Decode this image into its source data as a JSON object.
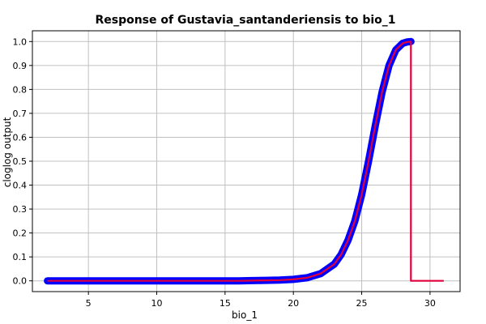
{
  "chart_data": {
    "type": "line",
    "title": "Response of Gustavia_santanderiensis to bio_1",
    "xlabel": "bio_1",
    "ylabel": "cloglog output",
    "xlim": [
      0.9,
      32.2
    ],
    "ylim": [
      -0.045,
      1.045
    ],
    "x_ticks": [
      5,
      10,
      15,
      20,
      25,
      30
    ],
    "y_ticks": [
      0.0,
      0.1,
      0.2,
      0.3,
      0.4,
      0.5,
      0.6,
      0.7,
      0.8,
      0.9,
      1.0
    ],
    "grid": true,
    "colors": {
      "mean_line": "#e0003c",
      "band": "#0000ff",
      "grid": "#c0c0c0",
      "axis": "#000000"
    },
    "series": [
      {
        "x": [
          2.0,
          16.0,
          17.0,
          18.0,
          19.0,
          20.0,
          21.0,
          22.0,
          23.0,
          23.5,
          24.0,
          24.5,
          25.0,
          25.5,
          26.0,
          26.5,
          27.0,
          27.5,
          28.0,
          28.3,
          28.6,
          28.6,
          31.0
        ],
        "values": [
          0.0,
          0.0,
          0.001,
          0.002,
          0.003,
          0.006,
          0.013,
          0.03,
          0.07,
          0.11,
          0.17,
          0.25,
          0.36,
          0.5,
          0.65,
          0.79,
          0.9,
          0.965,
          0.993,
          0.998,
          1.0,
          0.0,
          0.0
        ]
      }
    ]
  }
}
